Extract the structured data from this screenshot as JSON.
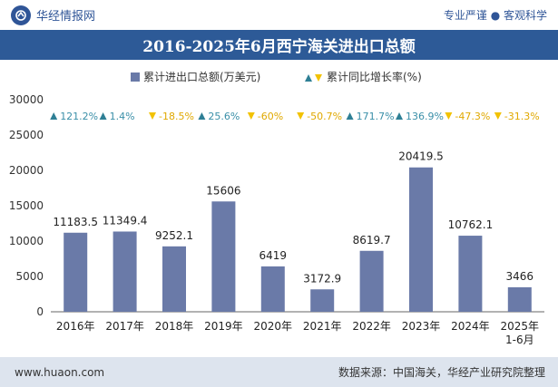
{
  "header": {
    "brand": "华经情报网",
    "tagline": "专业严谨 ● 客观科学"
  },
  "colors": {
    "bar": "#6a7aa8",
    "growth_marker_up": "#2e7f95",
    "growth_marker_down": "#f2c200",
    "growth_text_up": "#3a8fa8",
    "growth_text_down": "#e0a800",
    "title_bg": "#2d5a97"
  },
  "footer": {
    "website": "www.huaon.com",
    "source": "数据来源：中国海关，华经产业研究院整理"
  },
  "chart_data": {
    "type": "bar",
    "title": "2016-2025年6月西宁海关进出口总额",
    "categories": [
      "2016年",
      "2017年",
      "2018年",
      "2019年",
      "2020年",
      "2021年",
      "2022年",
      "2023年",
      "2024年",
      "2025年\n1-6月"
    ],
    "series": [
      {
        "name": "累计进出口总额(万美元)",
        "values": [
          11183.5,
          11349.4,
          9252.1,
          15606,
          6419,
          3172.9,
          8619.7,
          20419.5,
          10762.1,
          3466
        ],
        "labels": [
          "11183.5",
          "11349.4",
          "9252.1",
          "15606",
          "6419",
          "3172.9",
          "8619.7",
          "20419.5",
          "10762.1",
          "3466"
        ]
      },
      {
        "name": "累计同比增长率(%)",
        "values": [
          121.2,
          1.4,
          -18.5,
          25.6,
          -60,
          -50.7,
          171.7,
          136.9,
          -47.3,
          -31.3
        ],
        "labels": [
          "121.2%",
          "1.4%",
          "-18.5%",
          "25.6%",
          "-60%",
          "-50.7%",
          "171.7%",
          "136.9%",
          "-47.3%",
          "-31.3%"
        ]
      }
    ],
    "yticks": [
      "0",
      "5000",
      "10000",
      "15000",
      "20000",
      "25000",
      "30000"
    ],
    "ylim": [
      0,
      30000
    ],
    "legend_position": "top-center",
    "grid": false
  }
}
